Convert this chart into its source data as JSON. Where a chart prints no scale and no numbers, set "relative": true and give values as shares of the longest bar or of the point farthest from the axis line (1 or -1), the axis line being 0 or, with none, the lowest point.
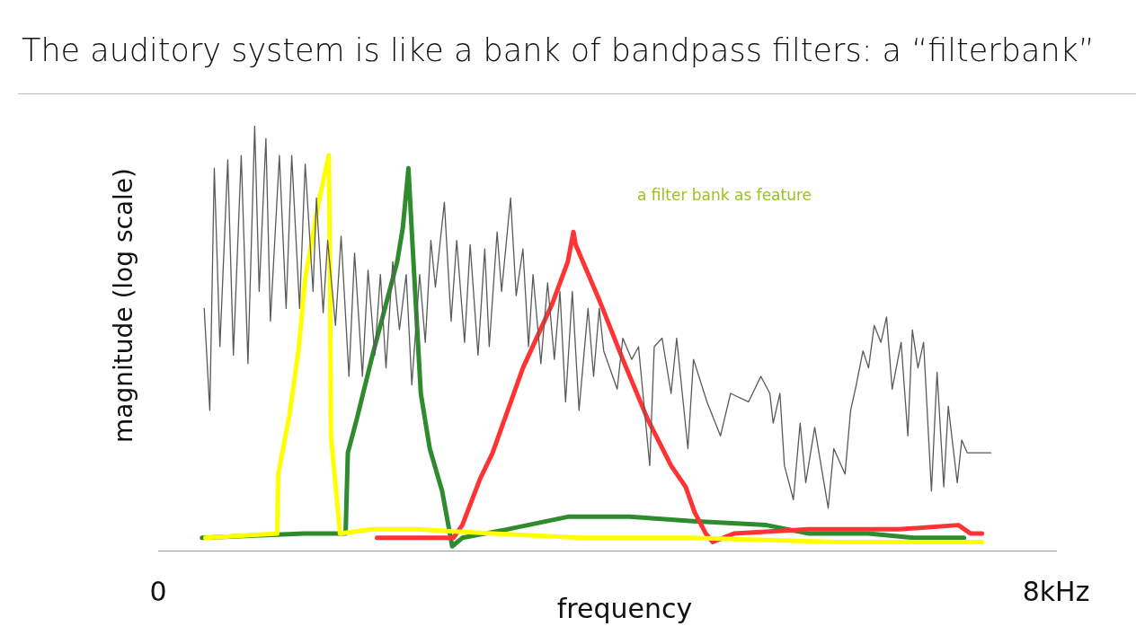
{
  "chart_data": {
    "type": "line",
    "title": "The auditory system is like a bank of bandpass filters: a “filterbank”",
    "xlabel": "frequency",
    "ylabel": "magnitude (log scale)",
    "annotations": [
      "a filter bank as feature"
    ],
    "relative": true,
    "marker": "none",
    "xlim": [
      0,
      8
    ],
    "xticks": [
      {
        "value": 0,
        "label": "0"
      },
      {
        "value": 8,
        "label": "8kHz"
      }
    ],
    "series": [
      {
        "color": "#5a5a5a",
        "x": [
          0.41,
          0.46,
          0.5,
          0.55,
          0.62,
          0.67,
          0.74,
          0.8,
          0.86,
          0.9,
          0.96,
          1.0,
          1.08,
          1.14,
          1.19,
          1.26,
          1.31,
          1.38,
          1.41,
          1.47,
          1.51,
          1.58,
          1.63,
          1.7,
          1.75,
          1.82,
          1.87,
          1.93,
          1.98,
          2.03,
          2.09,
          2.15,
          2.21,
          2.26,
          2.33,
          2.38,
          2.43,
          2.47,
          2.55,
          2.61,
          2.66,
          2.73,
          2.78,
          2.85,
          2.91,
          2.95,
          3.02,
          3.06,
          3.14,
          3.19,
          3.25,
          3.3,
          3.34,
          3.41,
          3.47,
          3.53,
          3.58,
          3.63,
          3.69,
          3.75,
          3.83,
          3.88,
          3.93,
          3.97,
          4.09,
          4.14,
          4.22,
          4.28,
          4.38,
          4.42,
          4.49,
          4.57,
          4.62,
          4.72,
          4.77,
          4.89,
          5.01,
          5.1,
          5.26,
          5.37,
          5.45,
          5.48,
          5.54,
          5.58,
          5.66,
          5.72,
          5.77,
          5.85,
          5.97,
          6.02,
          6.12,
          6.17,
          6.22,
          6.28,
          6.33,
          6.38,
          6.44,
          6.49,
          6.54,
          6.62,
          6.68,
          6.72,
          6.77,
          6.82,
          6.89,
          6.94,
          7.0,
          7.04,
          7.12,
          7.16,
          7.21,
          7.42
        ],
        "values": [
          0.57,
          0.33,
          0.9,
          0.48,
          0.92,
          0.46,
          0.93,
          0.44,
          1.0,
          0.61,
          0.97,
          0.54,
          0.93,
          0.57,
          0.93,
          0.57,
          0.91,
          0.61,
          0.83,
          0.56,
          0.73,
          0.53,
          0.74,
          0.41,
          0.7,
          0.41,
          0.66,
          0.46,
          0.65,
          0.43,
          0.68,
          0.52,
          0.65,
          0.39,
          0.65,
          0.49,
          0.73,
          0.62,
          0.82,
          0.54,
          0.73,
          0.49,
          0.72,
          0.46,
          0.71,
          0.48,
          0.75,
          0.61,
          0.83,
          0.6,
          0.71,
          0.48,
          0.65,
          0.44,
          0.63,
          0.45,
          0.61,
          0.35,
          0.61,
          0.33,
          0.57,
          0.41,
          0.57,
          0.47,
          0.38,
          0.5,
          0.45,
          0.48,
          0.2,
          0.48,
          0.5,
          0.37,
          0.5,
          0.24,
          0.45,
          0.35,
          0.27,
          0.37,
          0.35,
          0.41,
          0.37,
          0.3,
          0.37,
          0.2,
          0.12,
          0.3,
          0.16,
          0.29,
          0.1,
          0.24,
          0.18,
          0.33,
          0.39,
          0.47,
          0.43,
          0.53,
          0.49,
          0.55,
          0.38,
          0.49,
          0.27,
          0.52,
          0.43,
          0.49,
          0.14,
          0.42,
          0.15,
          0.34,
          0.16,
          0.26,
          0.23,
          0.23
        ]
      },
      {
        "color": "#ffff00",
        "x": [
          0.42,
          1.06,
          1.07,
          1.17,
          1.25,
          1.31,
          1.43,
          1.52,
          1.53,
          1.54,
          1.62,
          1.91,
          2.31,
          2.98,
          3.78,
          4.73,
          6.06,
          7.34
        ],
        "values": [
          0.03,
          0.04,
          0.18,
          0.32,
          0.47,
          0.64,
          0.82,
          0.93,
          0.68,
          0.27,
          0.04,
          0.05,
          0.05,
          0.04,
          0.03,
          0.03,
          0.02,
          0.02
        ]
      },
      {
        "color": "#ff3333",
        "x": [
          1.95,
          2.63,
          2.71,
          2.87,
          2.98,
          3.25,
          3.51,
          3.65,
          3.7,
          3.72,
          3.93,
          4.14,
          4.36,
          4.57,
          4.7,
          4.78,
          4.88,
          4.94,
          5.13,
          5.8,
          6.6,
          7.13,
          7.24,
          7.34
        ],
        "values": [
          0.03,
          0.03,
          0.06,
          0.17,
          0.23,
          0.43,
          0.58,
          0.68,
          0.75,
          0.72,
          0.59,
          0.45,
          0.31,
          0.2,
          0.15,
          0.09,
          0.04,
          0.02,
          0.04,
          0.05,
          0.05,
          0.06,
          0.04,
          0.04
        ]
      },
      {
        "color": "#2e8b2e",
        "x": [
          0.39,
          1.3,
          1.67,
          1.69,
          1.77,
          1.91,
          2.05,
          2.13,
          2.18,
          2.23,
          2.26,
          2.34,
          2.42,
          2.53,
          2.62,
          2.71,
          3.11,
          3.66,
          4.2,
          4.73,
          5.42,
          5.8,
          6.33,
          6.73,
          7.18
        ],
        "values": [
          0.03,
          0.04,
          0.04,
          0.23,
          0.31,
          0.46,
          0.6,
          0.68,
          0.76,
          0.9,
          0.75,
          0.37,
          0.24,
          0.14,
          0.01,
          0.03,
          0.05,
          0.08,
          0.08,
          0.07,
          0.06,
          0.04,
          0.04,
          0.03,
          0.03
        ]
      }
    ]
  }
}
